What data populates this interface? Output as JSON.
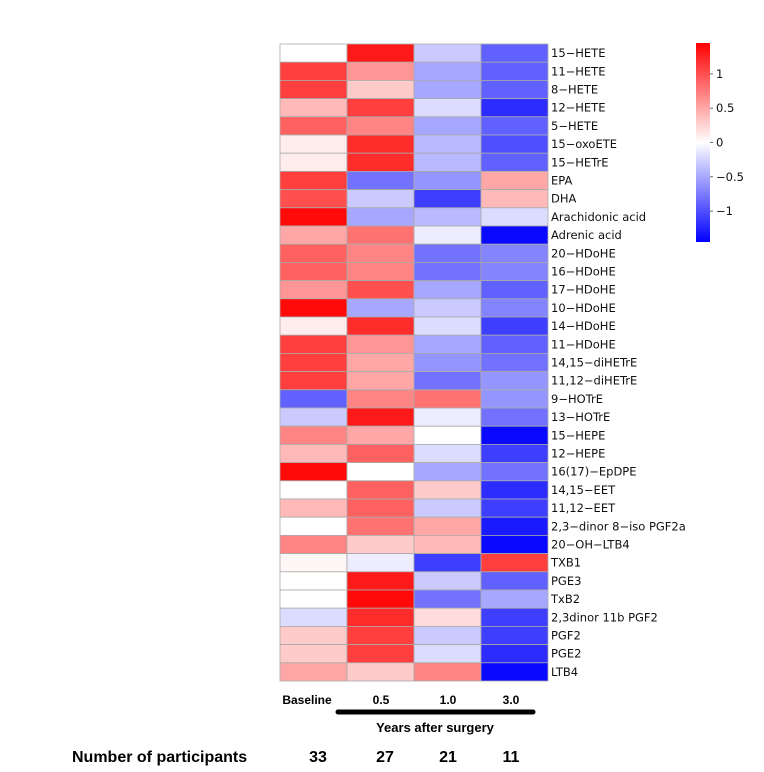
{
  "chart_data": {
    "type": "heatmap",
    "columns": [
      "Baseline",
      "0.5",
      "1.0",
      "3.0"
    ],
    "xlabel": "Years after surgery",
    "rows": [
      {
        "name": "15−HETE",
        "values": [
          0.0,
          1.3,
          -0.3,
          -0.9
        ]
      },
      {
        "name": "11−HETE",
        "values": [
          1.1,
          0.6,
          -0.5,
          -0.9
        ]
      },
      {
        "name": "8−HETE",
        "values": [
          1.1,
          0.3,
          -0.5,
          -0.9
        ]
      },
      {
        "name": "12−HETE",
        "values": [
          0.4,
          1.1,
          -0.2,
          -1.2
        ]
      },
      {
        "name": "5−HETE",
        "values": [
          0.9,
          0.7,
          -0.5,
          -0.9
        ]
      },
      {
        "name": "15−oxoETE",
        "values": [
          0.1,
          1.2,
          -0.4,
          -1.0
        ]
      },
      {
        "name": "15−HETrE",
        "values": [
          0.1,
          1.2,
          -0.4,
          -0.9
        ]
      },
      {
        "name": "EPA",
        "values": [
          1.1,
          -0.8,
          -0.6,
          0.5
        ]
      },
      {
        "name": "DHA",
        "values": [
          1.0,
          -0.3,
          -1.1,
          0.4
        ]
      },
      {
        "name": "Arachidonic acid",
        "values": [
          1.4,
          -0.5,
          -0.4,
          -0.2
        ]
      },
      {
        "name": "Adrenic acid",
        "values": [
          0.5,
          0.8,
          -0.1,
          -1.4
        ]
      },
      {
        "name": "20−HDoHE",
        "values": [
          0.9,
          0.7,
          -0.8,
          -0.7
        ]
      },
      {
        "name": "16−HDoHE",
        "values": [
          0.9,
          0.7,
          -0.8,
          -0.7
        ]
      },
      {
        "name": "17−HDoHE",
        "values": [
          0.6,
          1.0,
          -0.5,
          -0.9
        ]
      },
      {
        "name": "10−HDoHE",
        "values": [
          1.4,
          -0.5,
          -0.3,
          -0.7
        ]
      },
      {
        "name": "14−HDoHE",
        "values": [
          0.1,
          1.2,
          -0.2,
          -1.1
        ]
      },
      {
        "name": "11−HDoHE",
        "values": [
          1.1,
          0.6,
          -0.5,
          -0.9
        ]
      },
      {
        "name": "14,15−diHETrE",
        "values": [
          1.1,
          0.5,
          -0.6,
          -0.8
        ]
      },
      {
        "name": "11,12−diHETrE",
        "values": [
          1.1,
          0.5,
          -0.8,
          -0.6
        ]
      },
      {
        "name": "9−HOTrE",
        "values": [
          -0.9,
          0.7,
          0.8,
          -0.6
        ]
      },
      {
        "name": "13−HOTrE",
        "values": [
          -0.3,
          1.3,
          -0.1,
          -0.8
        ]
      },
      {
        "name": "15−HEPE",
        "values": [
          0.7,
          0.5,
          0.0,
          -1.4
        ]
      },
      {
        "name": "12−HEPE",
        "values": [
          0.4,
          0.9,
          -0.2,
          -1.1
        ]
      },
      {
        "name": "16(17)−EpDPE",
        "values": [
          1.4,
          0.0,
          -0.5,
          -0.8
        ]
      },
      {
        "name": "14,15−EET",
        "values": [
          0.0,
          0.9,
          0.3,
          -1.2
        ]
      },
      {
        "name": "11,12−EET",
        "values": [
          0.4,
          0.9,
          -0.3,
          -1.1
        ]
      },
      {
        "name": "2,3−dinor 8−iso PGF2a",
        "values": [
          0.0,
          0.8,
          0.5,
          -1.3
        ]
      },
      {
        "name": "20−OH−LTB4",
        "values": [
          0.7,
          0.3,
          0.4,
          -1.4
        ]
      },
      {
        "name": "TXB1",
        "values": [
          0.05,
          -0.1,
          -1.1,
          1.1
        ]
      },
      {
        "name": "PGE3",
        "values": [
          0.0,
          1.3,
          -0.3,
          -0.9
        ]
      },
      {
        "name": "TxB2",
        "values": [
          0.0,
          1.4,
          -0.8,
          -0.5
        ]
      },
      {
        "name": "2,3dinor 11b PGF2",
        "values": [
          -0.2,
          1.2,
          0.2,
          -1.1
        ]
      },
      {
        "name": "PGF2",
        "values": [
          0.3,
          1.1,
          -0.3,
          -1.1
        ]
      },
      {
        "name": "PGE2",
        "values": [
          0.3,
          1.1,
          -0.2,
          -1.2
        ]
      },
      {
        "name": "LTB4",
        "values": [
          0.5,
          0.3,
          0.7,
          -1.4
        ]
      }
    ],
    "color_scale": {
      "ticks": [
        1,
        0.5,
        0,
        -0.5,
        -1
      ],
      "tick_labels": [
        "1",
        "0.5",
        "0",
        "−0.5",
        "−1"
      ],
      "range": [
        -1.45,
        1.45
      ],
      "low_color": "#0000ff",
      "mid_color": "#ffffff",
      "high_color": "#ff0000"
    }
  },
  "participants": {
    "label": "Number of participants",
    "counts": [
      "33",
      "27",
      "21",
      "11"
    ]
  }
}
